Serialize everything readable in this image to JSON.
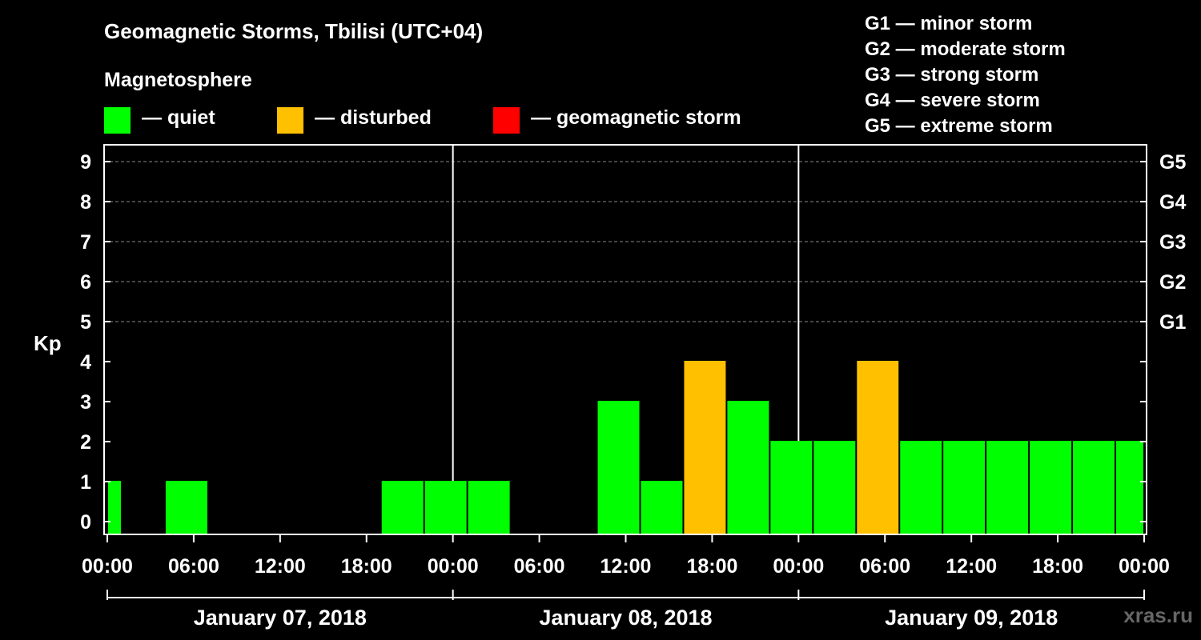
{
  "header": {
    "title": "Geomagnetic Storms, Tbilisi (UTC+04)",
    "subtitle": "Magnetosphere"
  },
  "legend": [
    {
      "label": "— quiet",
      "color": "#00ff00"
    },
    {
      "label": "— disturbed",
      "color": "#ffc000"
    },
    {
      "label": "— geomagnetic storm",
      "color": "#ff0000"
    }
  ],
  "storm_levels": [
    "G1 — minor storm",
    "G2 — moderate storm",
    "G3 — strong storm",
    "G4 — severe storm",
    "G5 — extreme storm"
  ],
  "watermark": "xras.ru",
  "chart_data": {
    "type": "bar",
    "ylabel": "Kp",
    "ylim": [
      0,
      9
    ],
    "yticks": [
      "0",
      "1",
      "2",
      "3",
      "4",
      "5",
      "6",
      "7",
      "8",
      "9"
    ],
    "right_axis_labels": [
      {
        "kp": 5,
        "label": "G1"
      },
      {
        "kp": 6,
        "label": "G2"
      },
      {
        "kp": 7,
        "label": "G3"
      },
      {
        "kp": 8,
        "label": "G4"
      },
      {
        "kp": 9,
        "label": "G5"
      }
    ],
    "grid": true,
    "x_tick_labels": [
      "00:00",
      "06:00",
      "12:00",
      "18:00",
      "00:00",
      "06:00",
      "12:00",
      "18:00",
      "00:00",
      "06:00",
      "12:00",
      "18:00",
      "00:00"
    ],
    "days": [
      "January 07, 2018",
      "January 08, 2018",
      "January 09, 2018"
    ],
    "bars": [
      {
        "start": "2018-01-07 00:00",
        "end": "2018-01-07 01:00",
        "kp": 1,
        "status": "quiet"
      },
      {
        "start": "2018-01-07 04:00",
        "end": "2018-01-07 07:00",
        "kp": 1,
        "status": "quiet"
      },
      {
        "start": "2018-01-07 19:00",
        "end": "2018-01-07 22:00",
        "kp": 1,
        "status": "quiet"
      },
      {
        "start": "2018-01-07 22:00",
        "end": "2018-01-08 01:00",
        "kp": 1,
        "status": "quiet"
      },
      {
        "start": "2018-01-08 01:00",
        "end": "2018-01-08 04:00",
        "kp": 1,
        "status": "quiet"
      },
      {
        "start": "2018-01-08 10:00",
        "end": "2018-01-08 13:00",
        "kp": 3,
        "status": "quiet"
      },
      {
        "start": "2018-01-08 13:00",
        "end": "2018-01-08 16:00",
        "kp": 1,
        "status": "quiet"
      },
      {
        "start": "2018-01-08 16:00",
        "end": "2018-01-08 19:00",
        "kp": 4,
        "status": "disturbed"
      },
      {
        "start": "2018-01-08 19:00",
        "end": "2018-01-08 22:00",
        "kp": 3,
        "status": "quiet"
      },
      {
        "start": "2018-01-08 22:00",
        "end": "2018-01-09 01:00",
        "kp": 2,
        "status": "quiet"
      },
      {
        "start": "2018-01-09 01:00",
        "end": "2018-01-09 04:00",
        "kp": 2,
        "status": "quiet"
      },
      {
        "start": "2018-01-09 04:00",
        "end": "2018-01-09 07:00",
        "kp": 4,
        "status": "disturbed"
      },
      {
        "start": "2018-01-09 07:00",
        "end": "2018-01-09 10:00",
        "kp": 2,
        "status": "quiet"
      },
      {
        "start": "2018-01-09 10:00",
        "end": "2018-01-09 13:00",
        "kp": 2,
        "status": "quiet"
      },
      {
        "start": "2018-01-09 13:00",
        "end": "2018-01-09 16:00",
        "kp": 2,
        "status": "quiet"
      },
      {
        "start": "2018-01-09 16:00",
        "end": "2018-01-09 19:00",
        "kp": 2,
        "status": "quiet"
      },
      {
        "start": "2018-01-09 19:00",
        "end": "2018-01-09 22:00",
        "kp": 2,
        "status": "quiet"
      },
      {
        "start": "2018-01-09 22:00",
        "end": "2018-01-10 00:00",
        "kp": 2,
        "status": "quiet"
      }
    ],
    "status_colors": {
      "quiet": "#00ff00",
      "disturbed": "#ffc000",
      "storm": "#ff0000"
    }
  }
}
